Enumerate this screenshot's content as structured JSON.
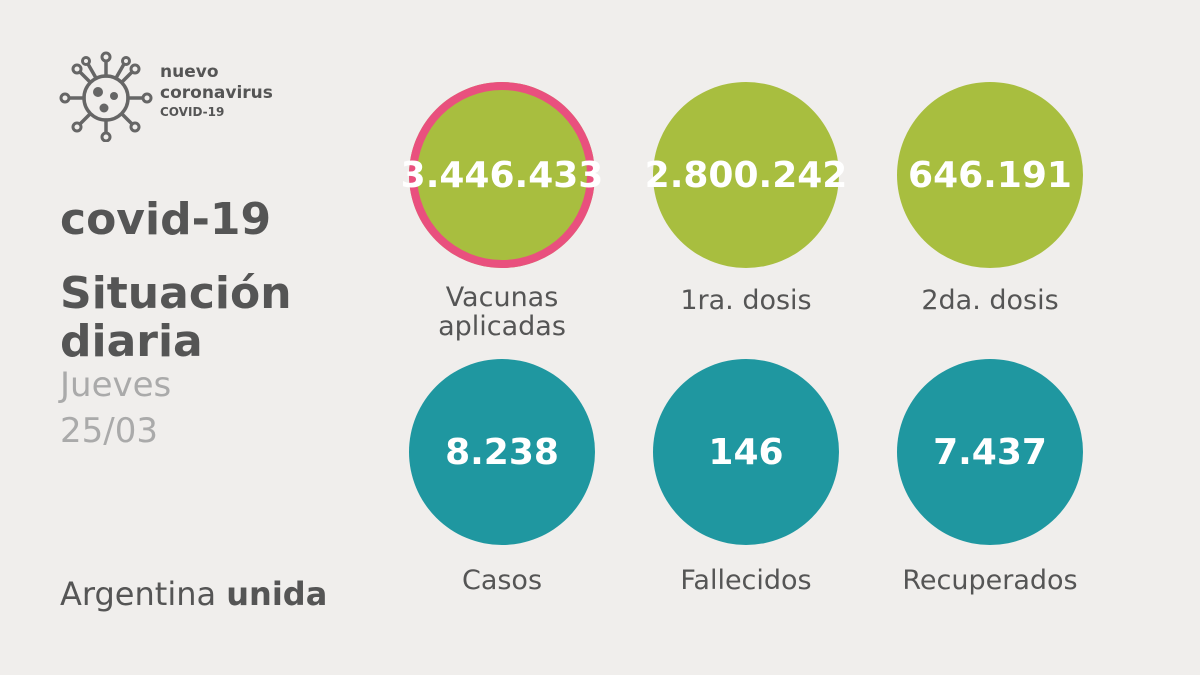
{
  "logo": {
    "icon": "virus-icon",
    "line1": "nuevo",
    "line2": "coronavirus",
    "line3": "COVID-19"
  },
  "header": {
    "title": "covid-19",
    "subtitle": "Situación diaria",
    "weekday": "Jueves",
    "date": "25/03"
  },
  "stats": {
    "vacunas": {
      "value": "3.446.433",
      "label_line1": "Vacunas",
      "label_line2": "aplicadas"
    },
    "dosis1": {
      "value": "2.800.242",
      "label": "1ra. dosis"
    },
    "dosis2": {
      "value": "646.191",
      "label": "2da. dosis"
    },
    "casos": {
      "value": "8.238",
      "label": "Casos"
    },
    "fallecidos": {
      "value": "146",
      "label": "Fallecidos"
    },
    "recuperados": {
      "value": "7.437",
      "label": "Recuperados"
    }
  },
  "footer": {
    "brand_regular": "Argentina",
    "brand_bold": "unida"
  },
  "colors": {
    "green": "#a8be3f",
    "teal": "#1f97a0",
    "highlight_ring": "#e9507e",
    "text": "#555555",
    "muted": "#aaaaaa"
  }
}
